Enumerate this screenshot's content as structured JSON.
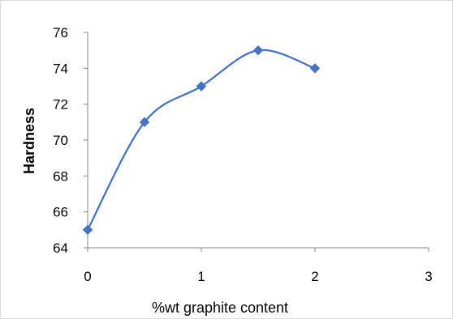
{
  "chart_data": {
    "type": "line",
    "title": "",
    "xlabel": "%wt graphite content",
    "ylabel": "Hardness",
    "xlim": [
      0,
      3
    ],
    "ylim": [
      64,
      76
    ],
    "xticks": [
      0,
      1,
      2,
      3
    ],
    "yticks": [
      64,
      66,
      68,
      70,
      72,
      74,
      76
    ],
    "grid": false,
    "legend": "none",
    "smooth": true,
    "series": [
      {
        "color": "#4472c4",
        "marker": "diamond",
        "x": [
          0,
          0.5,
          1,
          1.5,
          2
        ],
        "y": [
          65,
          71,
          73,
          75,
          74
        ]
      }
    ]
  }
}
